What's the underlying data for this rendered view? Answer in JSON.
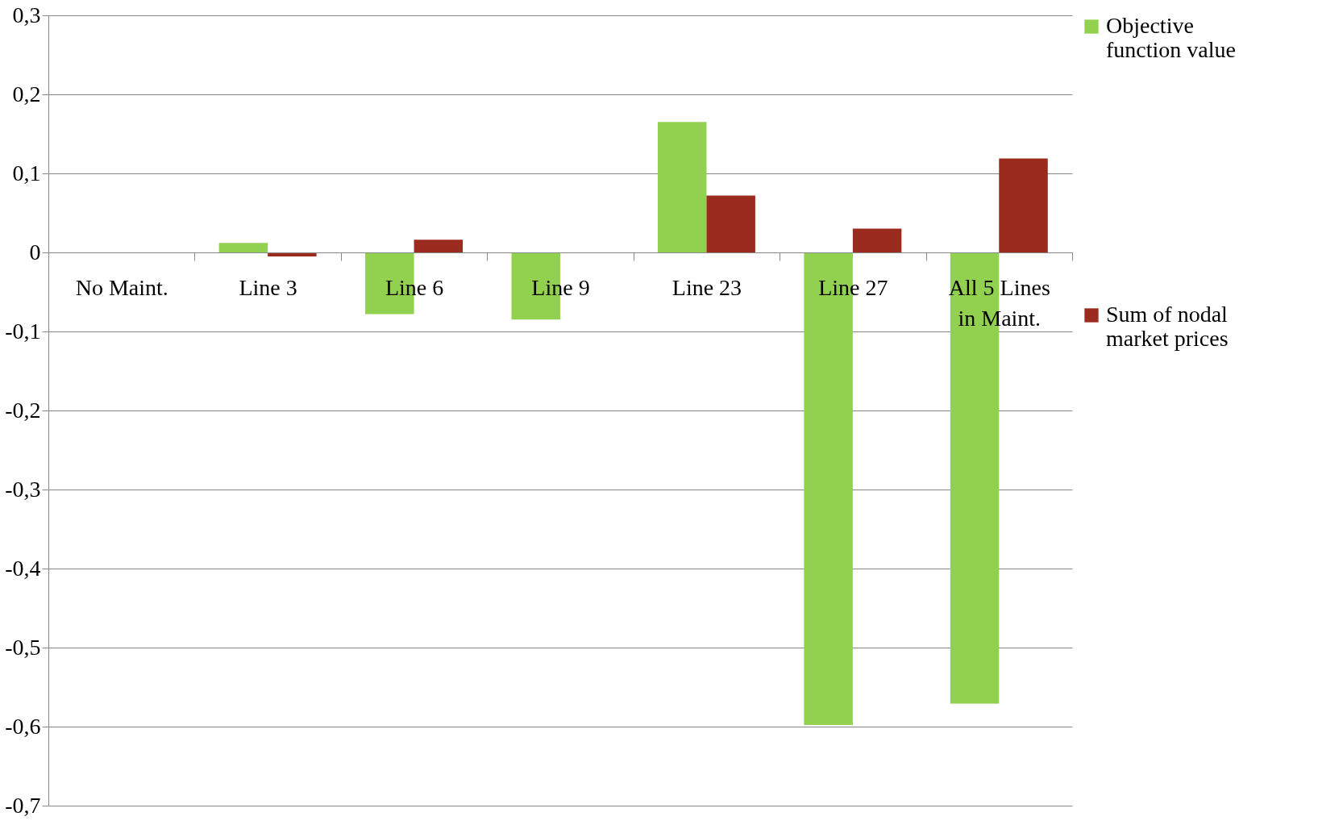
{
  "chart_data": {
    "type": "bar",
    "categories": [
      "No Maint.",
      "Line 3",
      "Line 6",
      "Line 9",
      "Line 23",
      "Line 27",
      "All 5 Lines in Maint."
    ],
    "series": [
      {
        "name": "Objective function value",
        "color": "#92d050",
        "values": [
          0,
          0.012,
          -0.078,
          -0.085,
          0.165,
          -0.598,
          -0.571
        ]
      },
      {
        "name": "Sum of nodal market prices",
        "color": "#9c2b1f",
        "values": [
          0,
          -0.005,
          0.016,
          0,
          0.072,
          0.03,
          0.119
        ]
      }
    ],
    "ylim": [
      -0.7,
      0.3
    ],
    "yticks": [
      {
        "value": -0.7,
        "label": "-0,7"
      },
      {
        "value": -0.6,
        "label": "-0,6"
      },
      {
        "value": -0.5,
        "label": "-0,5"
      },
      {
        "value": -0.4,
        "label": "-0,4"
      },
      {
        "value": -0.3,
        "label": "-0,3"
      },
      {
        "value": -0.2,
        "label": "-0,2"
      },
      {
        "value": -0.1,
        "label": "-0,1"
      },
      {
        "value": 0,
        "label": "0"
      },
      {
        "value": 0.1,
        "label": "0,1"
      },
      {
        "value": 0.2,
        "label": "0,2"
      },
      {
        "value": 0.3,
        "label": "0,3"
      }
    ],
    "grid": "y",
    "legend": "right"
  }
}
